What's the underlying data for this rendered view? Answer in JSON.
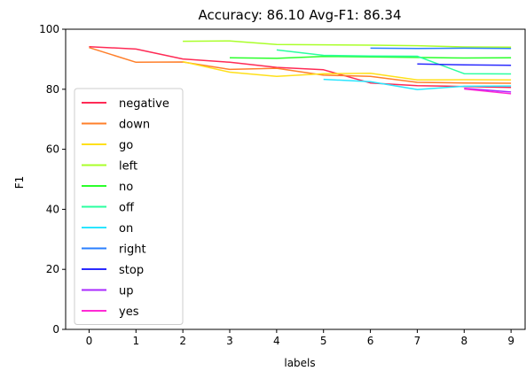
{
  "chart_data": {
    "type": "line",
    "title": "Accuracy: 86.10  Avg-F1: 86.34",
    "xlabel": "labels",
    "ylabel": "F1",
    "xlim": [
      -0.5,
      9.3
    ],
    "ylim": [
      0,
      100
    ],
    "xticks": [
      0,
      1,
      2,
      3,
      4,
      5,
      6,
      7,
      8,
      9
    ],
    "yticks": [
      0,
      20,
      40,
      60,
      80,
      100
    ],
    "grid": false,
    "legend_position": "lower-left",
    "series": [
      {
        "name": "negative",
        "color": "#ff2a55",
        "x": [
          0,
          1,
          2,
          3,
          4,
          5,
          6,
          7,
          8,
          9
        ],
        "y": [
          94.2,
          93.4,
          90.1,
          89.0,
          87.3,
          86.5,
          82.1,
          81.2,
          80.9,
          80.6
        ]
      },
      {
        "name": "down",
        "color": "#ff7f2a",
        "x": [
          0,
          1,
          2,
          3,
          4,
          5,
          6,
          7,
          8,
          9
        ],
        "y": [
          93.9,
          89.0,
          89.1,
          86.6,
          87.0,
          84.7,
          84.3,
          82.3,
          82.1,
          82.0
        ]
      },
      {
        "name": "go",
        "color": "#ffe01a",
        "x": [
          2,
          3,
          4,
          5,
          6,
          7,
          8,
          9
        ],
        "y": [
          89.2,
          85.7,
          84.3,
          85.2,
          85.3,
          83.1,
          83.2,
          83.1
        ]
      },
      {
        "name": "left",
        "color": "#aaff2a",
        "x": [
          2,
          3,
          4,
          5,
          6,
          7,
          8,
          9
        ],
        "y": [
          96.0,
          96.1,
          94.9,
          94.8,
          94.7,
          94.5,
          94.1,
          94.0
        ]
      },
      {
        "name": "no",
        "color": "#2aff2a",
        "x": [
          3,
          4,
          5,
          6,
          7,
          8,
          9
        ],
        "y": [
          90.5,
          90.3,
          90.9,
          90.8,
          90.6,
          90.4,
          90.5
        ]
      },
      {
        "name": "off",
        "color": "#2aff9f",
        "x": [
          4,
          5,
          6,
          7,
          8,
          9
        ],
        "y": [
          93.1,
          91.3,
          91.1,
          91.0,
          85.2,
          85.1
        ]
      },
      {
        "name": "on",
        "color": "#2ae5ff",
        "x": [
          5,
          6,
          7,
          8,
          9
        ],
        "y": [
          83.3,
          82.5,
          79.9,
          81.0,
          81.1
        ]
      },
      {
        "name": "right",
        "color": "#2a7fff",
        "x": [
          6,
          7,
          8,
          9
        ],
        "y": [
          93.7,
          93.6,
          93.7,
          93.6
        ]
      },
      {
        "name": "stop",
        "color": "#2a2aff",
        "x": [
          7,
          8,
          9
        ],
        "y": [
          88.4,
          88.1,
          88.0
        ]
      },
      {
        "name": "up",
        "color": "#aa2aff",
        "x": [
          8,
          9
        ],
        "y": [
          80.3,
          79.1
        ]
      },
      {
        "name": "yes",
        "color": "#ff2ad4",
        "x": [
          8,
          9
        ],
        "y": [
          80.1,
          78.5
        ]
      }
    ]
  }
}
